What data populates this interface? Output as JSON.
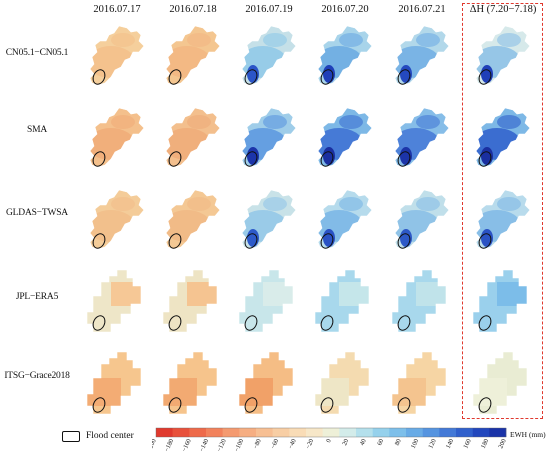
{
  "columns": [
    "2016.07.17",
    "2016.07.18",
    "2016.07.19",
    "2016.07.20",
    "2016.07.21",
    "ΔH (7.20−7.18)"
  ],
  "rows": [
    "CN05.1−CN05.1",
    "SMA",
    "GLDAS−TWSA",
    "JPL−ERA5",
    "ITSG−Grace2018"
  ],
  "legend": {
    "flood_center_label": "Flood center",
    "unit_label": "EWH (mm)"
  },
  "colorbar": {
    "ticks": [
      "−200",
      "−180",
      "−160",
      "−140",
      "−120",
      "−100",
      "−80",
      "−60",
      "−40",
      "−20",
      "0",
      "20",
      "40",
      "60",
      "80",
      "100",
      "120",
      "140",
      "160",
      "180",
      "200"
    ],
    "colors": [
      "#e03a2e",
      "#e8513b",
      "#ee6a4a",
      "#f2825c",
      "#f49a70",
      "#f6ae82",
      "#f7bf93",
      "#f8cea4",
      "#f9dcb6",
      "#f7e7c8",
      "#eef0d8",
      "#d3ecea",
      "#b4e0ec",
      "#95d1ec",
      "#7dbfea",
      "#68abe6",
      "#5594e0",
      "#4379d7",
      "#3060cc",
      "#2247bd",
      "#1a33a8"
    ]
  },
  "highlight_color": "#e0392f",
  "flood_marker_icon": "ellipse-outline"
}
